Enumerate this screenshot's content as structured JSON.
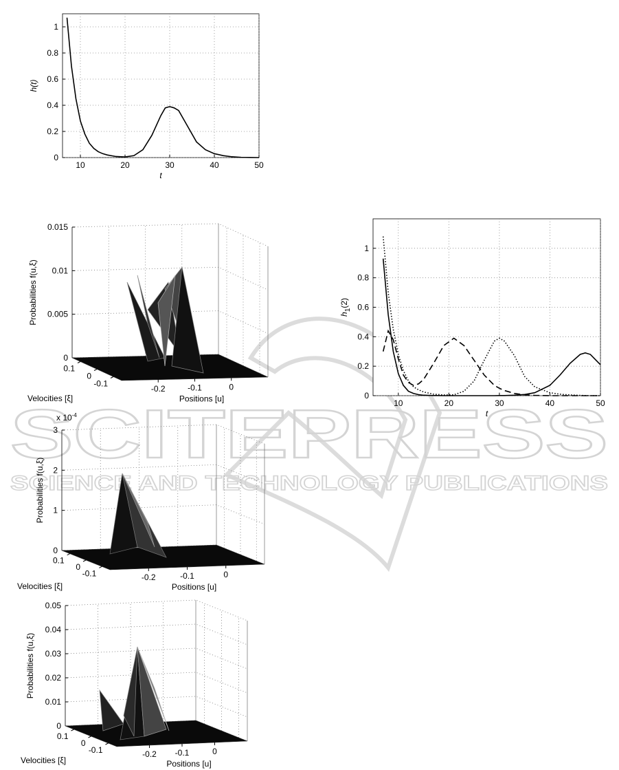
{
  "chart_data": [
    {
      "type": "line",
      "xlabel": "t",
      "ylabel": "h(t)",
      "grid": true,
      "xlim": [
        6,
        50
      ],
      "ylim": [
        0,
        1.1
      ],
      "xticks": [
        10,
        20,
        30,
        40,
        50
      ],
      "yticks": [
        0,
        0.2,
        0.4,
        0.6,
        0.8,
        1
      ],
      "x": [
        7,
        8,
        9,
        10,
        11,
        12,
        13,
        14,
        15,
        16,
        18,
        20,
        22,
        24,
        26,
        28,
        29,
        30,
        31,
        32,
        34,
        36,
        38,
        40,
        42,
        44,
        46,
        48,
        50
      ],
      "values": [
        1.07,
        0.7,
        0.45,
        0.28,
        0.18,
        0.11,
        0.07,
        0.045,
        0.03,
        0.02,
        0.008,
        0.005,
        0.015,
        0.06,
        0.17,
        0.32,
        0.38,
        0.39,
        0.38,
        0.36,
        0.24,
        0.12,
        0.06,
        0.03,
        0.015,
        0.006,
        0.002,
        0.001,
        0
      ],
      "color": "#000000"
    },
    {
      "type": "line",
      "xlabel": "t",
      "ylabel": {
        "main": "h",
        "sub": "1",
        "suffix": "(2)"
      },
      "grid": true,
      "xlim": [
        5,
        50
      ],
      "ylim": [
        0,
        1.2
      ],
      "xticks": [
        10,
        20,
        30,
        40,
        50
      ],
      "yticks": [
        0,
        0.2,
        0.4,
        0.6,
        0.8,
        1
      ],
      "x": [
        7,
        8,
        9,
        10,
        11,
        12,
        13,
        14,
        15,
        17,
        19,
        21,
        23,
        25,
        27,
        29,
        30,
        31,
        33,
        35,
        37,
        40,
        42,
        44,
        46,
        47,
        48,
        50
      ],
      "series": [
        {
          "color": "#000000",
          "style": "dotted",
          "values": [
            1.08,
            0.7,
            0.45,
            0.28,
            0.17,
            0.1,
            0.06,
            0.04,
            0.025,
            0.01,
            0.005,
            0.006,
            0.03,
            0.1,
            0.24,
            0.37,
            0.39,
            0.37,
            0.27,
            0.13,
            0.06,
            0.02,
            0.01,
            0.005,
            0.002,
            0.001,
            0,
            0
          ]
        },
        {
          "color": "#000000",
          "style": "solid",
          "values": [
            0.93,
            0.55,
            0.3,
            0.15,
            0.07,
            0.03,
            0.015,
            0.007,
            0.003,
            0.001,
            0,
            0,
            0,
            0,
            0,
            0,
            0.001,
            0.001,
            0.003,
            0.008,
            0.02,
            0.07,
            0.14,
            0.22,
            0.28,
            0.29,
            0.28,
            0.21
          ]
        },
        {
          "color": "#000000",
          "style": "dashed",
          "values": [
            0.3,
            0.44,
            0.38,
            0.25,
            0.14,
            0.09,
            0.07,
            0.08,
            0.11,
            0.22,
            0.34,
            0.39,
            0.34,
            0.24,
            0.14,
            0.07,
            0.05,
            0.035,
            0.015,
            0.006,
            0.002,
            0,
            0,
            0,
            0,
            0,
            0,
            0
          ]
        }
      ]
    },
    {
      "type": "surface",
      "zlabel": "Probabilities f(u,ξ)",
      "vlabel": "Velocities [ξ]",
      "ulabel": "Positions [u]",
      "grid": true,
      "zlim": [
        0,
        0.015
      ],
      "zticks": [
        0,
        0.005,
        0.01,
        0.015
      ],
      "ulim": [
        -0.3,
        0.1
      ],
      "uticks": [
        -0.2,
        -0.1,
        0
      ],
      "vlim": [
        0.15,
        -0.15
      ],
      "vticks": [
        0.1,
        0,
        -0.1
      ]
    },
    {
      "type": "surface",
      "zlabel": "Probabilities f(u,ξ)",
      "vlabel": "Velocities [ξ]",
      "ulabel": "Positions [u]",
      "grid": true,
      "zlim": [
        0,
        3
      ],
      "zticks": [
        0,
        1,
        2,
        3
      ],
      "zexponent": {
        "base": "x 10",
        "power": "-4"
      },
      "ulim": [
        -0.3,
        0.1
      ],
      "uticks": [
        -0.2,
        -0.1,
        0
      ],
      "vlim": [
        0.15,
        -0.15
      ],
      "vticks": [
        0.1,
        0,
        -0.1
      ]
    },
    {
      "type": "surface",
      "zlabel": "Probabilities f(u,ξ)",
      "vlabel": "Velocities [ξ]",
      "ulabel": "Positions [u]",
      "grid": true,
      "zlim": [
        0,
        0.05
      ],
      "zticks": [
        0,
        0.01,
        0.02,
        0.03,
        0.04,
        0.05
      ],
      "ulim": [
        -0.3,
        0.1
      ],
      "uticks": [
        -0.2,
        -0.1,
        0
      ],
      "vlim": [
        0.15,
        -0.15
      ],
      "vticks": [
        0.1,
        0,
        -0.1
      ]
    }
  ],
  "watermark": {
    "main": "SCITEPRESS",
    "sub": "SCIENCE AND TECHNOLOGY PUBLICATIONS"
  }
}
